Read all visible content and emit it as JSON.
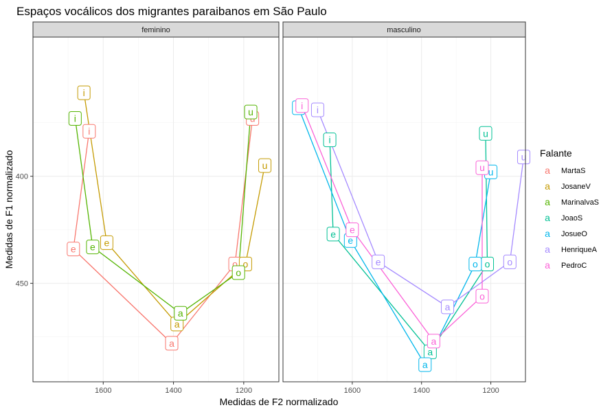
{
  "chart_data": {
    "type": "line",
    "title": "Espaços vocálicos dos migrantes paraibanos em São Paulo",
    "xlabel": "Medidas de F2 normalizado",
    "ylabel": "Medidas de F1 normalizado",
    "x_reversed": true,
    "y_reversed": true,
    "xlim": [
      1800,
      1100
    ],
    "ylim": [
      335,
      496
    ],
    "x_ticks": [
      1600,
      1400,
      1200
    ],
    "y_ticks": [
      400,
      450
    ],
    "x_tick_labels": [
      "1600",
      "1400",
      "1200"
    ],
    "y_tick_labels": [
      "400",
      "450"
    ],
    "grid": true,
    "legend": {
      "title": "Falante",
      "position": "right",
      "key_symbol": "a"
    },
    "panels": [
      {
        "name": "feminino",
        "series": [
          {
            "name": "MartaS",
            "color": "#F8766D",
            "points": [
              {
                "vowel": "i",
                "f2": 1640,
                "f1": 379
              },
              {
                "vowel": "e",
                "f2": 1685,
                "f1": 434
              },
              {
                "vowel": "a",
                "f2": 1405,
                "f1": 478
              },
              {
                "vowel": "o",
                "f2": 1225,
                "f1": 441
              },
              {
                "vowel": "u",
                "f2": 1175,
                "f1": 373
              }
            ]
          },
          {
            "name": "JosaneV",
            "color": "#C49A00",
            "points": [
              {
                "vowel": "i",
                "f2": 1655,
                "f1": 361
              },
              {
                "vowel": "e",
                "f2": 1590,
                "f1": 431
              },
              {
                "vowel": "a",
                "f2": 1390,
                "f1": 469
              },
              {
                "vowel": "o",
                "f2": 1195,
                "f1": 441
              },
              {
                "vowel": "u",
                "f2": 1140,
                "f1": 395
              }
            ]
          },
          {
            "name": "MarinalvaS",
            "color": "#53B400",
            "points": [
              {
                "vowel": "i",
                "f2": 1680,
                "f1": 373
              },
              {
                "vowel": "e",
                "f2": 1630,
                "f1": 433
              },
              {
                "vowel": "a",
                "f2": 1380,
                "f1": 464
              },
              {
                "vowel": "o",
                "f2": 1215,
                "f1": 445
              },
              {
                "vowel": "u",
                "f2": 1180,
                "f1": 370
              }
            ]
          }
        ]
      },
      {
        "name": "masculino",
        "series": [
          {
            "name": "JoaoS",
            "color": "#00C094",
            "points": [
              {
                "vowel": "i",
                "f2": 1665,
                "f1": 383
              },
              {
                "vowel": "e",
                "f2": 1655,
                "f1": 427
              },
              {
                "vowel": "a",
                "f2": 1375,
                "f1": 482
              },
              {
                "vowel": "o",
                "f2": 1210,
                "f1": 441
              },
              {
                "vowel": "u",
                "f2": 1215,
                "f1": 380
              }
            ]
          },
          {
            "name": "JosueO",
            "color": "#00B6EB",
            "points": [
              {
                "vowel": "i",
                "f2": 1755,
                "f1": 368
              },
              {
                "vowel": "e",
                "f2": 1605,
                "f1": 430
              },
              {
                "vowel": "a",
                "f2": 1390,
                "f1": 488
              },
              {
                "vowel": "o",
                "f2": 1245,
                "f1": 441
              },
              {
                "vowel": "u",
                "f2": 1200,
                "f1": 398
              }
            ]
          },
          {
            "name": "HenriqueA",
            "color": "#A58AFF",
            "points": [
              {
                "vowel": "i",
                "f2": 1700,
                "f1": 369
              },
              {
                "vowel": "e",
                "f2": 1525,
                "f1": 440
              },
              {
                "vowel": "a",
                "f2": 1325,
                "f1": 461
              },
              {
                "vowel": "o",
                "f2": 1145,
                "f1": 440
              },
              {
                "vowel": "u",
                "f2": 1105,
                "f1": 391
              }
            ]
          },
          {
            "name": "PedroC",
            "color": "#FB61D7",
            "points": [
              {
                "vowel": "i",
                "f2": 1745,
                "f1": 367
              },
              {
                "vowel": "e",
                "f2": 1600,
                "f1": 425
              },
              {
                "vowel": "a",
                "f2": 1365,
                "f1": 477
              },
              {
                "vowel": "o",
                "f2": 1225,
                "f1": 456
              },
              {
                "vowel": "u",
                "f2": 1225,
                "f1": 396
              }
            ]
          }
        ]
      }
    ]
  }
}
